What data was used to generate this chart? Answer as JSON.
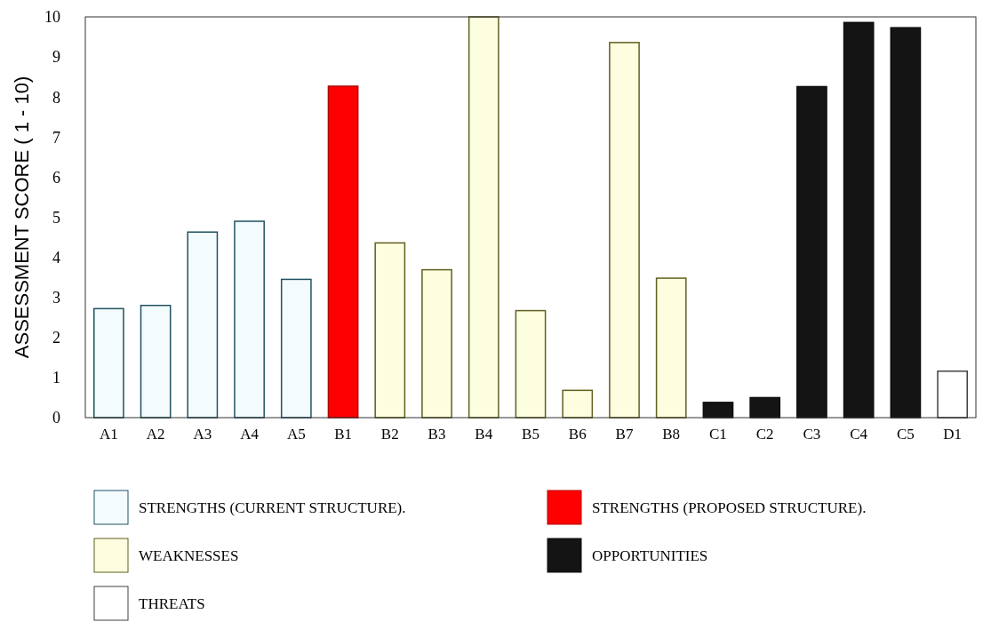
{
  "chart_data": {
    "type": "bar",
    "ylabel": "ASSESSMENT SCORE ( 1 - 10)",
    "categories": [
      "A1",
      "A2",
      "A3",
      "A4",
      "A5",
      "B1",
      "B2",
      "B3",
      "B4",
      "B5",
      "B6",
      "B7",
      "B8",
      "C1",
      "C2",
      "C3",
      "C4",
      "C5",
      "D1"
    ],
    "series": [
      {
        "name": "STRENGTHS (CURRENT STRUCTURE).",
        "color": "#f3fbfd",
        "values": [
          2.72,
          2.8,
          4.63,
          4.9,
          3.45,
          null,
          null,
          null,
          null,
          null,
          null,
          null,
          null,
          null,
          null,
          null,
          null,
          null,
          null
        ]
      },
      {
        "name": "STRENGTHS (PROPOSED STRUCTURE).",
        "color": "#ff0000",
        "values": [
          null,
          null,
          null,
          null,
          null,
          8.27,
          null,
          null,
          null,
          null,
          null,
          null,
          null,
          null,
          null,
          null,
          null,
          null,
          null
        ]
      },
      {
        "name": "WEAKNESSES",
        "color": "#fdfde0",
        "values": [
          null,
          null,
          null,
          null,
          null,
          null,
          4.36,
          3.69,
          10,
          2.67,
          0.68,
          9.36,
          3.48,
          null,
          null,
          null,
          null,
          null,
          null
        ]
      },
      {
        "name": "OPPORTUNITIES",
        "color": "#141414",
        "values": [
          null,
          null,
          null,
          null,
          null,
          null,
          null,
          null,
          null,
          null,
          null,
          null,
          null,
          0.38,
          0.5,
          8.26,
          9.86,
          9.73,
          null
        ]
      },
      {
        "name": "THREATS",
        "color": "#ffffff",
        "values": [
          null,
          null,
          null,
          null,
          null,
          null,
          null,
          null,
          null,
          null,
          null,
          null,
          null,
          null,
          null,
          null,
          null,
          null,
          1.16
        ]
      }
    ],
    "ylim": [
      0,
      10
    ],
    "yticks": [
      0,
      1,
      2,
      3,
      4,
      5,
      6,
      7,
      8,
      9,
      10
    ],
    "legend": "bottom"
  }
}
